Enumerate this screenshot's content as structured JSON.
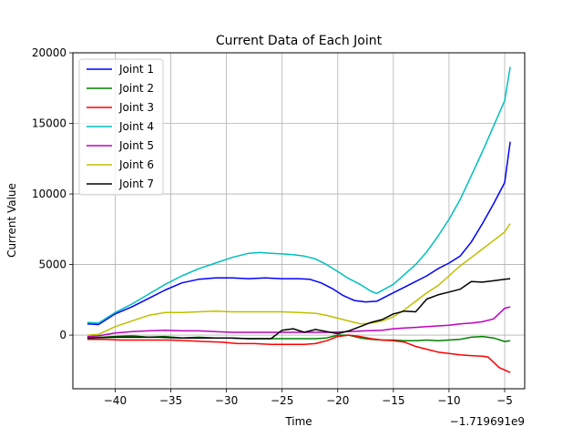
{
  "chart_data": {
    "type": "line",
    "title": "Current Data of Each Joint",
    "xlabel": "Time",
    "ylabel": "Current Value",
    "x_offset_label": "−1.719691e9",
    "xlim": [
      -43.8,
      -3.2
    ],
    "ylim": [
      -3800,
      20000
    ],
    "xticks": [
      -40,
      -35,
      -30,
      -25,
      -20,
      -15,
      -10,
      -5
    ],
    "xtick_labels": [
      "−40",
      "−35",
      "−30",
      "−25",
      "−20",
      "−15",
      "−10",
      "−5"
    ],
    "yticks": [
      0,
      5000,
      10000,
      15000,
      20000
    ],
    "ytick_labels": [
      "0",
      "5000",
      "10000",
      "15000",
      "20000"
    ],
    "grid": true,
    "legend": "top-left",
    "series": [
      {
        "name": "Joint 1",
        "color": "#0000ff",
        "x": [
          -42.5,
          -41.5,
          -40,
          -38.5,
          -37,
          -35.5,
          -34,
          -32.5,
          -31,
          -29.5,
          -28,
          -26.5,
          -25,
          -23.5,
          -22.5,
          -21.5,
          -20.5,
          -19.5,
          -18.5,
          -17.5,
          -16.5,
          -15,
          -13.5,
          -12,
          -11,
          -10,
          -9,
          -8,
          -7,
          -6,
          -5,
          -4.5
        ],
        "values": [
          800,
          750,
          1500,
          2000,
          2600,
          3200,
          3700,
          3950,
          4050,
          4050,
          4000,
          4050,
          4000,
          4000,
          3950,
          3700,
          3300,
          2800,
          2450,
          2350,
          2400,
          3000,
          3600,
          4200,
          4700,
          5100,
          5600,
          6600,
          7900,
          9300,
          10800,
          13700
        ]
      },
      {
        "name": "Joint 2",
        "color": "#008000",
        "x": [
          -42.5,
          -40,
          -38.5,
          -37,
          -35.5,
          -34,
          -32.5,
          -31,
          -29.5,
          -28,
          -26.5,
          -25,
          -23.5,
          -22,
          -21,
          -20,
          -19,
          -18,
          -17,
          -16,
          -15,
          -14,
          -13,
          -12,
          -11,
          -10,
          -9,
          -8,
          -7,
          -6,
          -5,
          -4.5
        ],
        "values": [
          -200,
          -100,
          -50,
          -150,
          -100,
          -200,
          -150,
          -200,
          -200,
          -250,
          -250,
          -250,
          -250,
          -250,
          -200,
          0,
          0,
          -200,
          -300,
          -350,
          -350,
          -400,
          -400,
          -350,
          -400,
          -350,
          -300,
          -150,
          -100,
          -200,
          -450,
          -400
        ]
      },
      {
        "name": "Joint 3",
        "color": "#ff0000",
        "x": [
          -42.5,
          -41,
          -39.5,
          -38,
          -36.5,
          -35,
          -33.5,
          -32,
          -30.5,
          -29,
          -27.5,
          -26,
          -24.5,
          -23,
          -22,
          -21,
          -20,
          -19,
          -18,
          -17,
          -16,
          -15,
          -14,
          -13,
          -12,
          -11,
          -10,
          -9,
          -8,
          -7,
          -6.5,
          -5.5,
          -4.5
        ],
        "values": [
          -300,
          -300,
          -350,
          -350,
          -350,
          -350,
          -400,
          -450,
          -500,
          -600,
          -600,
          -650,
          -650,
          -650,
          -600,
          -400,
          -100,
          0,
          -100,
          -250,
          -350,
          -400,
          -500,
          -800,
          -1000,
          -1200,
          -1300,
          -1400,
          -1450,
          -1500,
          -1550,
          -2300,
          -2650
        ]
      },
      {
        "name": "Joint 4",
        "color": "#00bfbf",
        "x": [
          -42.5,
          -41.5,
          -40,
          -38.5,
          -37,
          -35.5,
          -34,
          -32.5,
          -31,
          -29.5,
          -28,
          -27,
          -26,
          -25,
          -24,
          -23,
          -22,
          -21,
          -20,
          -19,
          -18,
          -17,
          -16.5,
          -15,
          -14,
          -13,
          -12,
          -11,
          -10,
          -9,
          -8,
          -7,
          -6,
          -5,
          -4.5
        ],
        "values": [
          900,
          850,
          1600,
          2200,
          2900,
          3600,
          4200,
          4700,
          5100,
          5500,
          5800,
          5850,
          5800,
          5750,
          5700,
          5600,
          5400,
          5000,
          4500,
          4000,
          3600,
          3100,
          2950,
          3600,
          4300,
          5000,
          5900,
          7000,
          8200,
          9600,
          11300,
          13000,
          14800,
          16600,
          19000
        ]
      },
      {
        "name": "Joint 5",
        "color": "#bf00bf",
        "x": [
          -42.5,
          -41.5,
          -40,
          -38.5,
          -37,
          -35.5,
          -34,
          -32.5,
          -31,
          -29.5,
          -28,
          -26.5,
          -25,
          -23.5,
          -22,
          -20.5,
          -19,
          -17.5,
          -16,
          -15,
          -14,
          -13,
          -12,
          -11,
          -10,
          -9,
          -8,
          -7,
          -6,
          -5,
          -4.5
        ],
        "values": [
          -100,
          -50,
          150,
          250,
          300,
          350,
          300,
          300,
          250,
          200,
          200,
          200,
          200,
          200,
          200,
          200,
          250,
          300,
          350,
          450,
          500,
          550,
          600,
          650,
          700,
          800,
          850,
          950,
          1150,
          1900,
          2000
        ]
      },
      {
        "name": "Joint 6",
        "color": "#bfbf00",
        "x": [
          -42.5,
          -41.5,
          -40,
          -38.5,
          -37,
          -35.5,
          -34,
          -32.5,
          -31,
          -29.5,
          -28,
          -26.5,
          -25,
          -23.5,
          -22,
          -21,
          -20,
          -19,
          -18,
          -17,
          -16,
          -15,
          -14,
          -13,
          -12,
          -11,
          -10,
          -9,
          -8,
          -7,
          -6,
          -5,
          -4.5
        ],
        "values": [
          0,
          50,
          600,
          1000,
          1400,
          1600,
          1600,
          1650,
          1700,
          1650,
          1650,
          1650,
          1650,
          1600,
          1550,
          1400,
          1200,
          1000,
          800,
          850,
          1000,
          1300,
          1800,
          2400,
          3000,
          3500,
          4200,
          4900,
          5500,
          6100,
          6700,
          7300,
          7900
        ]
      },
      {
        "name": "Joint 7",
        "color": "#000000",
        "x": [
          -42.5,
          -40,
          -38,
          -36,
          -34,
          -32,
          -30,
          -28,
          -26,
          -25,
          -24,
          -23,
          -22,
          -21,
          -20,
          -19,
          -18,
          -17,
          -16,
          -15,
          -14,
          -13,
          -12,
          -11,
          -10,
          -9,
          -8,
          -7,
          -6,
          -5,
          -4.5
        ],
        "values": [
          -200,
          -150,
          -150,
          -150,
          -200,
          -200,
          -200,
          -250,
          -250,
          350,
          450,
          200,
          400,
          250,
          100,
          300,
          600,
          900,
          1100,
          1500,
          1700,
          1650,
          2550,
          2850,
          3050,
          3250,
          3800,
          3750,
          3850,
          3950,
          4000
        ]
      }
    ]
  }
}
